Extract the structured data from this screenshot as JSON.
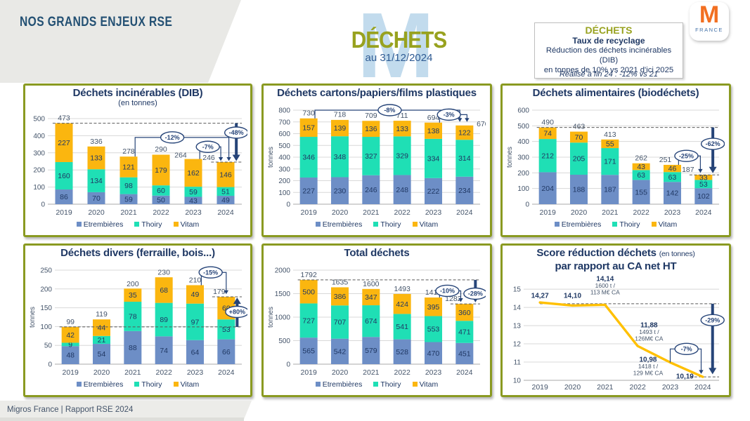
{
  "header": {
    "section_title": "NOS GRANDS ENJEUX RSE",
    "page_title": "DÉCHETS",
    "page_date": "au 31/12/2024",
    "watermark": "M",
    "objective": {
      "title": "DÉCHETS",
      "subtitle": "Taux de recyclage",
      "line1": "Réduction des déchets incinérables (DIB)",
      "line2": "en tonnes de 10% vs 2021 d'ici 2025",
      "realized": "Réalisé à fin 24 : -12% vs 21"
    },
    "logo": {
      "letter": "M",
      "country": "FRANCE"
    }
  },
  "footer": {
    "text": "Migros France | Rapport RSE 2024"
  },
  "palette": {
    "etrembieres": "#6d8ec6",
    "thoiry": "#1fdfb5",
    "vitam": "#fbb60f",
    "navy": "#264478",
    "olive": "#8a9a21"
  },
  "chart_data": [
    {
      "type": "bar",
      "title": "Déchets incinérables (DIB)",
      "subtitle": "(en tonnes)",
      "ylabel": "",
      "categories": [
        "2019",
        "2020",
        "2021",
        "2022",
        "2023",
        "2024"
      ],
      "series": [
        {
          "name": "Etrembières",
          "color_key": "etrembieres",
          "values": [
            86,
            70,
            59,
            50,
            43,
            49
          ]
        },
        {
          "name": "Thoiry",
          "color_key": "thoiry",
          "values": [
            160,
            134,
            98,
            60,
            59,
            51
          ]
        },
        {
          "name": "Vitam",
          "color_key": "vitam",
          "values": [
            227,
            133,
            121,
            179,
            162,
            146
          ]
        }
      ],
      "totals": [
        473,
        336,
        278,
        290,
        264,
        246
      ],
      "ylim": [
        0,
        500
      ],
      "ystep": 100,
      "grid": true,
      "legend_position": "bottom",
      "annotations": {
        "dashes": [
          {
            "y": 473,
            "from": -0.35
          },
          {
            "y": 246,
            "from": 4.55
          }
        ],
        "connectors": [
          {
            "from": [
              2.2,
              278
            ],
            "via": 390,
            "to": [
              5.1,
              252
            ]
          },
          {
            "from": [
              4.2,
              264
            ],
            "via": 335,
            "to": [
              4.85,
              252
            ]
          }
        ],
        "badges": [
          {
            "label": "-12%",
            "x": 3.35,
            "y": 390
          },
          {
            "label": "-7%",
            "x": 4.45,
            "y": 335
          },
          {
            "label": "-48%",
            "x": 5.33,
            "y": 418
          }
        ],
        "big_arrows": [
          {
            "x": 5.33,
            "from": 473,
            "to": 252,
            "dir": "down"
          }
        ],
        "total_offsets": {
          "4": [
            -18,
            2
          ],
          "5": [
            -24,
            1
          ]
        }
      }
    },
    {
      "type": "bar",
      "title": "Déchets cartons/papiers/films plastiques",
      "subtitle": "",
      "ylabel": "tonnes",
      "categories": [
        "2019",
        "2020",
        "2021",
        "2022",
        "2023",
        "2024"
      ],
      "series": [
        {
          "name": "Etrembières",
          "color_key": "etrembieres",
          "values": [
            227,
            230,
            246,
            248,
            222,
            234
          ]
        },
        {
          "name": "Thoiry",
          "color_key": "thoiry",
          "values": [
            346,
            348,
            327,
            329,
            334,
            314
          ]
        },
        {
          "name": "Vitam",
          "color_key": "vitam",
          "values": [
            157,
            139,
            136,
            133,
            138,
            122
          ]
        }
      ],
      "totals": [
        730,
        718,
        709,
        711,
        694,
        670
      ],
      "ylim": [
        0,
        800
      ],
      "ystep": 100,
      "grid": true,
      "legend_position": "bottom",
      "annotations": {
        "dashes": [],
        "connectors": [
          {
            "from": [
              0.2,
              730
            ],
            "via": 800,
            "to": [
              4.85,
              700
            ]
          },
          {
            "from": [
              4.2,
              694
            ],
            "via": 762,
            "to": [
              5.08,
              700
            ]
          }
        ],
        "badges": [
          {
            "label": "-8%",
            "x": 2.6,
            "y": 800
          },
          {
            "label": "-3%",
            "x": 4.5,
            "y": 762
          }
        ],
        "big_arrows": [],
        "total_offsets": {
          "5": [
            26,
            5
          ]
        }
      }
    },
    {
      "type": "bar",
      "title": "Déchets alimentaires (biodéchets)",
      "subtitle": "",
      "ylabel": "tonnes",
      "categories": [
        "2019",
        "2020",
        "2021",
        "2022",
        "2023",
        "2024"
      ],
      "series": [
        {
          "name": "Etrembières",
          "color_key": "etrembieres",
          "values": [
            204,
            188,
            187,
            155,
            142,
            102
          ]
        },
        {
          "name": "Thoiry",
          "color_key": "thoiry",
          "values": [
            212,
            205,
            171,
            63,
            63,
            53
          ]
        },
        {
          "name": "Vitam",
          "color_key": "vitam",
          "values": [
            74,
            70,
            55,
            43,
            46,
            33
          ]
        }
      ],
      "totals": [
        490,
        463,
        413,
        262,
        251,
        187
      ],
      "ylim": [
        0,
        600
      ],
      "ystep": 100,
      "grid": true,
      "legend_position": "bottom",
      "annotations": {
        "dashes": [
          {
            "y": 490,
            "from": -0.35
          },
          {
            "y": 187,
            "from": 4.55
          }
        ],
        "connectors": [
          {
            "from": [
              4.2,
              251
            ],
            "via": 308,
            "to": [
              4.9,
              200
            ]
          }
        ],
        "badges": [
          {
            "label": "-25%",
            "x": 4.45,
            "y": 308
          },
          {
            "label": "-62%",
            "x": 5.3,
            "y": 385
          }
        ],
        "big_arrows": [
          {
            "x": 5.3,
            "from": 490,
            "to": 198,
            "dir": "down"
          }
        ],
        "total_offsets": {
          "4": [
            -10,
            0
          ],
          "5": [
            -22,
            0
          ]
        }
      }
    },
    {
      "type": "bar",
      "title": "Déchets divers (ferraille, bois...)",
      "subtitle": "",
      "ylabel": "tonnes",
      "categories": [
        "2019",
        "2020",
        "2021",
        "2022",
        "2023",
        "2024"
      ],
      "series": [
        {
          "name": "Etrembières",
          "color_key": "etrembieres",
          "values": [
            48,
            54,
            88,
            74,
            64,
            66
          ]
        },
        {
          "name": "Thoiry",
          "color_key": "thoiry",
          "values": [
            9,
            21,
            78,
            89,
            97,
            53
          ]
        },
        {
          "name": "Vitam",
          "color_key": "vitam",
          "values": [
            42,
            44,
            35,
            68,
            49,
            60
          ]
        }
      ],
      "totals": [
        99,
        119,
        200,
        230,
        210,
        179
      ],
      "ylim": [
        0,
        250
      ],
      "ystep": 50,
      "grid": true,
      "legend_position": "bottom",
      "annotations": {
        "dashes": [
          {
            "y": 99,
            "from": -0.35
          },
          {
            "y": 179,
            "from": 4.55
          }
        ],
        "connectors": [
          {
            "from": [
              4.2,
              210
            ],
            "via": 244,
            "to": [
              5.0,
              186
            ]
          }
        ],
        "badges": [
          {
            "label": "-15%",
            "x": 4.5,
            "y": 244
          },
          {
            "label": "+80%",
            "x": 5.35,
            "y": 139
          }
        ],
        "big_arrows": [
          {
            "x": 5.35,
            "from": 99,
            "to": 177,
            "dir": "up"
          }
        ],
        "total_offsets": {
          "5": [
            -10,
            0
          ]
        }
      }
    },
    {
      "type": "bar",
      "title": "Total déchets",
      "subtitle": "",
      "ylabel": "tonnes",
      "categories": [
        "2019",
        "2020",
        "2021",
        "2022",
        "2023",
        "2024"
      ],
      "series": [
        {
          "name": "Etrembières",
          "color_key": "etrembieres",
          "values": [
            565,
            542,
            579,
            528,
            470,
            451
          ]
        },
        {
          "name": "Thoiry",
          "color_key": "thoiry",
          "values": [
            727,
            707,
            674,
            541,
            553,
            471
          ]
        },
        {
          "name": "Vitam",
          "color_key": "vitam",
          "values": [
            500,
            386,
            347,
            424,
            395,
            360
          ]
        }
      ],
      "totals": [
        1792,
        1635,
        1600,
        1493,
        1418,
        1282
      ],
      "ylim": [
        0,
        2000
      ],
      "ystep": 500,
      "grid": true,
      "legend_position": "bottom",
      "annotations": {
        "dashes": [
          {
            "y": 1792,
            "from": -0.35
          },
          {
            "y": 1282,
            "from": 4.55
          }
        ],
        "connectors": [
          {
            "from": [
              4.2,
              1418
            ],
            "via": 1560,
            "to": [
              4.88,
              1320
            ]
          }
        ],
        "badges": [
          {
            "label": "-10%",
            "x": 4.45,
            "y": 1560
          },
          {
            "label": "-28%",
            "x": 5.35,
            "y": 1500
          }
        ],
        "big_arrows": [
          {
            "x": 5.35,
            "from": 1792,
            "to": 1315,
            "dir": "down"
          }
        ],
        "total_offsets": {
          "5": [
            -16,
            0
          ]
        }
      }
    },
    {
      "type": "line",
      "title": "Score réduction déchets",
      "title_small": "(en tonnes)",
      "title_line2": "par rapport au CA net HT",
      "ylabel": "",
      "categories": [
        "2019",
        "2020",
        "2021",
        "2022",
        "2023",
        "2024"
      ],
      "values": [
        14.27,
        14.1,
        14.14,
        11.88,
        10.98,
        10.19
      ],
      "line_color": "#ffc000",
      "ylim": [
        10,
        15
      ],
      "ymax_display": 15.62,
      "yticks": [
        10,
        11,
        12,
        13,
        14,
        15
      ],
      "grid": true,
      "labels": [
        {
          "x": 0,
          "y": 14.52,
          "lines": [
            "14,27"
          ]
        },
        {
          "x": 1,
          "y": 14.52,
          "lines": [
            "14,10"
          ]
        },
        {
          "x": 2,
          "y": 15.45,
          "lines": [
            "14,14",
            "1600 t /",
            "113 M€ CA"
          ]
        },
        {
          "x": 3.35,
          "y": 12.9,
          "lines": [
            "11,88",
            "1493 t /",
            "126M€ CA"
          ]
        },
        {
          "x": 3.32,
          "y": 11.02,
          "lines": [
            "10,98",
            "1418 t /",
            "129 M€ CA"
          ]
        },
        {
          "x": 4.45,
          "y": 10.1,
          "lines": [
            "10,19"
          ]
        }
      ],
      "annotations": {
        "dashes": [
          {
            "y": 14.2,
            "from": 0
          },
          {
            "y": 10.19,
            "from": 4.6
          }
        ],
        "connectors": [
          {
            "from": [
              4,
              10.98
            ],
            "via": 11.72,
            "to": [
              4.95,
              10.35
            ]
          }
        ],
        "badges": [
          {
            "label": "-7%",
            "x": 4.5,
            "y": 11.72
          },
          {
            "label": "-29%",
            "x": 5.3,
            "y": 13.3
          }
        ],
        "big_arrows": [
          {
            "x": 5.3,
            "from": 14.2,
            "to": 10.33,
            "dir": "down"
          }
        ]
      }
    }
  ]
}
